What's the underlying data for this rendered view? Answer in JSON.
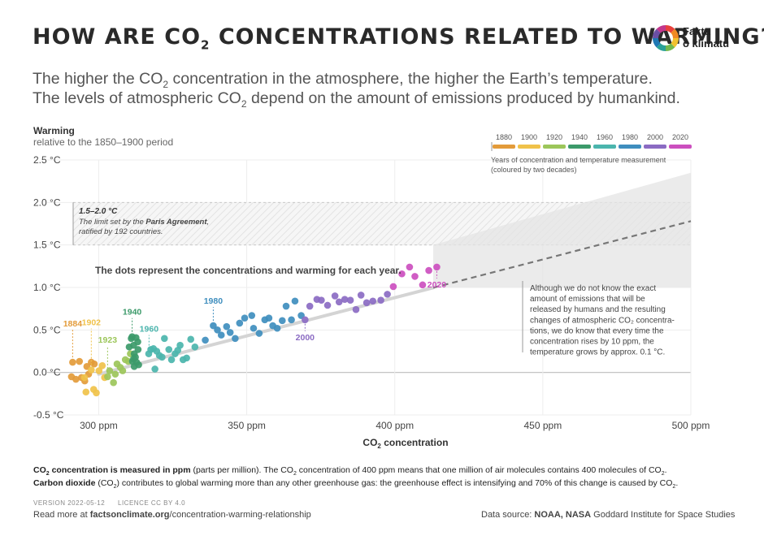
{
  "header": {
    "title_a": "HOW ARE CO",
    "title_sub": "2",
    "title_b": " CONCENTRATIONS RELATED TO WARMING?",
    "subtitle1_a": "The higher the CO",
    "subtitle1_sub": "2",
    "subtitle1_b": " concentration in the atmosphere, the higher the Earth’s temperature.",
    "subtitle2_a": "The levels of atmospheric CO",
    "subtitle2_sub": "2",
    "subtitle2_b": " depend on the amount of emissions produced by humankind."
  },
  "logo": {
    "line1": "Fakta",
    "line2": "o klimatu",
    "colors": [
      "#e8413c",
      "#f08a24",
      "#f2c12e",
      "#74b94e",
      "#2aa198",
      "#1f78b4",
      "#6a4fa3",
      "#c2368c"
    ]
  },
  "chart_data": {
    "type": "scatter",
    "ylabel": "Warming",
    "ylabel_sub": "relative to the 1850–1900 period",
    "xlabel_a": "CO",
    "xlabel_sub": "2",
    "xlabel_b": " concentration",
    "xlim": [
      290,
      500
    ],
    "ylim": [
      -0.5,
      2.5
    ],
    "x_ticks": [
      300,
      350,
      400,
      450,
      500
    ],
    "x_tick_labels": [
      "300 ppm",
      "350 ppm",
      "400 ppm",
      "450 ppm",
      "500 ppm"
    ],
    "y_ticks": [
      -0.5,
      0.0,
      0.5,
      1.0,
      1.5,
      2.0,
      2.5
    ],
    "y_tick_labels": [
      "-0.5 °C",
      "0.0 °C",
      "0.5 °C",
      "1.0 °C",
      "1.5 °C",
      "2.0 °C",
      "2.5 °C"
    ],
    "paris_band": {
      "y_range": [
        1.5,
        2.0
      ],
      "title": "1.5–2.0 °C",
      "line1_a": "The limit set by the ",
      "line1_b": "Paris Agreement",
      "line1_c": ",",
      "line2": "ratified by 192 countries."
    },
    "dots_note": "The dots represent the concentrations and warming for each year.",
    "trend_line": {
      "x": [
        300,
        500
      ],
      "y": [
        -0.02,
        1.78
      ]
    },
    "projection_fan": {
      "x_start": 413,
      "y_start_low": 1.0,
      "y_start_high": 1.5,
      "x_end": 500,
      "y_end_low": 1.0,
      "y_end_high": 2.35
    },
    "projection_note": [
      "Although we do not know the exact",
      "amount of emissions that will be",
      "released by humans and the resulting",
      "changes of atmospheric CO₂ concentra-",
      "tions, we do know that every time the",
      "concentration rises by 10 ppm, the",
      "temperature grows by approx. 0.1 °C."
    ],
    "legend": {
      "years": [
        "1880",
        "1900",
        "1920",
        "1940",
        "1960",
        "1980",
        "2000",
        "2020"
      ],
      "colors": [
        "#e39b3a",
        "#f0c24a",
        "#9cc65a",
        "#3c9a6a",
        "#4bb5ad",
        "#3f8ebe",
        "#8b6bc3",
        "#cc4fbf"
      ],
      "caption": [
        "Years of concentration and temperature measurement",
        "(coloured by two decades)"
      ]
    },
    "annotations": [
      {
        "label": "1884",
        "x": 291.2,
        "y": 0.12,
        "color": "#e39b3a"
      },
      {
        "label": "1902",
        "x": 297.5,
        "y": 0.03,
        "color": "#f0c24a"
      },
      {
        "label": "1923",
        "x": 303.0,
        "y": -0.05,
        "color": "#9cc65a"
      },
      {
        "label": "1940",
        "x": 311.3,
        "y": 0.42,
        "color": "#3c9a6a"
      },
      {
        "label": "1960",
        "x": 317.0,
        "y": 0.22,
        "color": "#4bb5ad"
      },
      {
        "label": "1980",
        "x": 338.7,
        "y": 0.55,
        "color": "#3f8ebe"
      },
      {
        "label": "2000",
        "x": 369.7,
        "y": 0.62,
        "color": "#8b6bc3"
      },
      {
        "label": "2020",
        "x": 414.2,
        "y": 1.24,
        "color": "#cc4fbf"
      }
    ],
    "series": [
      {
        "period": "1880s",
        "color": "#e39b3a",
        "points": [
          [
            291.2,
            0.12
          ],
          [
            290.8,
            -0.05
          ],
          [
            292.3,
            -0.08
          ],
          [
            293.5,
            0.13
          ],
          [
            294.2,
            -0.06
          ],
          [
            295.3,
            -0.1
          ],
          [
            296.0,
            0.07
          ],
          [
            296.6,
            -0.02
          ],
          [
            297.5,
            0.12
          ],
          [
            298.5,
            0.1
          ]
        ]
      },
      {
        "period": "1900s",
        "color": "#f0c24a",
        "points": [
          [
            295.2,
            -0.06
          ],
          [
            295.7,
            -0.23
          ],
          [
            297.5,
            0.03
          ],
          [
            298.3,
            -0.2
          ],
          [
            299.2,
            -0.24
          ],
          [
            300.1,
            0.02
          ],
          [
            301.2,
            0.08
          ],
          [
            302.0,
            -0.06
          ]
        ]
      },
      {
        "period": "1920s",
        "color": "#9cc65a",
        "points": [
          [
            303.0,
            -0.05
          ],
          [
            303.7,
            0.02
          ],
          [
            305.0,
            -0.12
          ],
          [
            305.6,
            -0.02
          ],
          [
            306.2,
            0.1
          ],
          [
            307.3,
            0.06
          ],
          [
            308.1,
            0.02
          ],
          [
            309.0,
            0.15
          ],
          [
            310.0,
            0.13
          ],
          [
            310.7,
            0.22
          ]
        ]
      },
      {
        "period": "1940s",
        "color": "#3c9a6a",
        "points": [
          [
            310.3,
            0.3
          ],
          [
            311.0,
            0.4
          ],
          [
            311.3,
            0.42
          ],
          [
            312.0,
            0.22
          ],
          [
            312.4,
            0.18
          ],
          [
            311.8,
            0.32
          ],
          [
            312.8,
            0.12
          ],
          [
            313.5,
            0.09
          ],
          [
            312.0,
            0.07
          ],
          [
            311.4,
            0.13
          ],
          [
            313.2,
            0.36
          ],
          [
            311.8,
            0.16
          ],
          [
            312.6,
            0.41
          ],
          [
            313.3,
            0.27
          ]
        ]
      },
      {
        "period": "1960s",
        "color": "#4bb5ad",
        "points": [
          [
            316.9,
            0.22
          ],
          [
            317.6,
            0.27
          ],
          [
            318.5,
            0.28
          ],
          [
            319.0,
            0.04
          ],
          [
            319.6,
            0.25
          ],
          [
            320.5,
            0.2
          ],
          [
            321.4,
            0.18
          ],
          [
            322.2,
            0.4
          ],
          [
            323.7,
            0.27
          ],
          [
            324.6,
            0.15
          ],
          [
            325.8,
            0.22
          ],
          [
            326.7,
            0.26
          ],
          [
            327.5,
            0.32
          ],
          [
            328.5,
            0.15
          ],
          [
            329.7,
            0.17
          ],
          [
            331.1,
            0.39
          ],
          [
            332.5,
            0.3
          ]
        ]
      },
      {
        "period": "1980s",
        "color": "#3f8ebe",
        "points": [
          [
            336.0,
            0.38
          ],
          [
            338.7,
            0.55
          ],
          [
            340.1,
            0.5
          ],
          [
            341.4,
            0.44
          ],
          [
            343.2,
            0.54
          ],
          [
            344.4,
            0.47
          ],
          [
            346.1,
            0.4
          ],
          [
            347.6,
            0.58
          ],
          [
            349.3,
            0.64
          ],
          [
            351.7,
            0.67
          ],
          [
            352.3,
            0.52
          ],
          [
            354.2,
            0.46
          ],
          [
            356.1,
            0.62
          ],
          [
            357.5,
            0.64
          ],
          [
            358.8,
            0.55
          ],
          [
            360.3,
            0.52
          ],
          [
            362.0,
            0.61
          ],
          [
            363.3,
            0.78
          ],
          [
            365.1,
            0.62
          ],
          [
            366.3,
            0.84
          ],
          [
            368.4,
            0.67
          ]
        ]
      },
      {
        "period": "2000s",
        "color": "#8b6bc3",
        "points": [
          [
            369.7,
            0.62
          ],
          [
            371.3,
            0.78
          ],
          [
            373.7,
            0.86
          ],
          [
            375.2,
            0.85
          ],
          [
            377.3,
            0.79
          ],
          [
            379.8,
            0.9
          ],
          [
            381.2,
            0.83
          ],
          [
            383.1,
            0.86
          ],
          [
            385.0,
            0.85
          ],
          [
            386.9,
            0.74
          ],
          [
            388.6,
            0.91
          ],
          [
            390.5,
            0.82
          ],
          [
            392.6,
            0.84
          ],
          [
            395.3,
            0.85
          ],
          [
            397.5,
            0.92
          ]
        ]
      },
      {
        "period": "2010s",
        "color": "#cc4fbf",
        "points": [
          [
            399.5,
            1.01
          ],
          [
            402.4,
            1.16
          ],
          [
            405.0,
            1.24
          ],
          [
            406.8,
            1.13
          ],
          [
            409.4,
            1.03
          ],
          [
            411.5,
            1.2
          ],
          [
            414.2,
            1.24
          ]
        ]
      }
    ]
  },
  "footer": {
    "line1_a": "CO",
    "line1_sub": "2",
    "line1_b": " concentration is measured in ppm",
    "line1_c": " (parts per million). The CO",
    "line1_sub2": "2",
    "line1_d": " concentration of 400 ppm means that one million of air molecules contains 400 molecules of CO",
    "line1_sub3": "2",
    "line1_e": ".",
    "line2_a": "Carbon dioxide",
    "line2_b": " (CO",
    "line2_sub": "2",
    "line2_c": ") contributes to global warming more than any other greenhouse gas: the greenhouse effect is intensifying and 70% of this change is caused by CO",
    "line2_sub2": "2",
    "line2_d": ".",
    "version": "VERSION 2022-05-12",
    "licence": "LICENCE CC BY 4.0",
    "readmore_a": "Read more at ",
    "readmore_b": "factsonclimate.org",
    "readmore_c": "/concentration-warming-relationship",
    "source_a": "Data source: ",
    "source_b": "NOAA, NASA",
    "source_c": " Goddard Institute for Space Studies"
  }
}
